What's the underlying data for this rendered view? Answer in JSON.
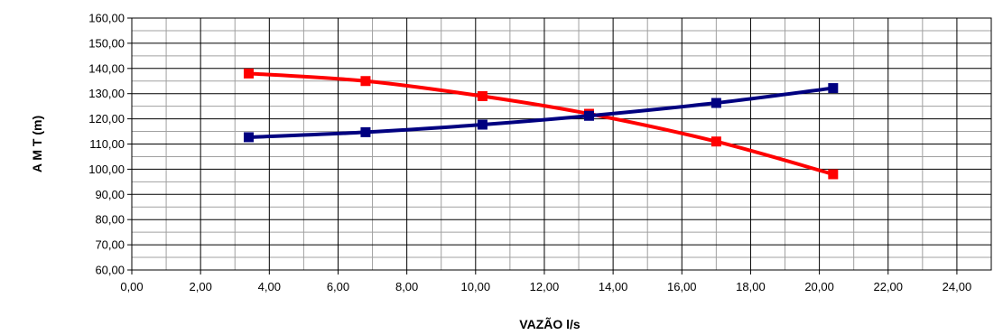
{
  "chart_data": {
    "type": "line",
    "title": "",
    "xlabel": "VAZÃO l/s",
    "ylabel": "A M T (m)",
    "xlim": [
      0,
      25
    ],
    "ylim": [
      60,
      160
    ],
    "x_ticks": [
      "0,00",
      "2,00",
      "4,00",
      "6,00",
      "8,00",
      "10,00",
      "12,00",
      "14,00",
      "16,00",
      "18,00",
      "20,00",
      "22,00",
      "24,00"
    ],
    "y_ticks": [
      "60,00",
      "70,00",
      "80,00",
      "90,00",
      "100,00",
      "110,00",
      "120,00",
      "130,00",
      "140,00",
      "150,00",
      "160,00"
    ],
    "grid": true,
    "legend": "none",
    "series": [
      {
        "color": "#ff0000",
        "marker": "square",
        "x": [
          3.4,
          6.8,
          10.2,
          13.3,
          17.0,
          20.4
        ],
        "y": [
          138.0,
          135.0,
          129.0,
          122.0,
          111.0,
          98.0
        ]
      },
      {
        "color": "#000080",
        "marker": "square",
        "x": [
          3.4,
          6.8,
          10.2,
          13.3,
          17.0,
          20.4
        ],
        "y": [
          112.7,
          114.7,
          117.7,
          121.2,
          126.3,
          132.2
        ]
      }
    ]
  }
}
